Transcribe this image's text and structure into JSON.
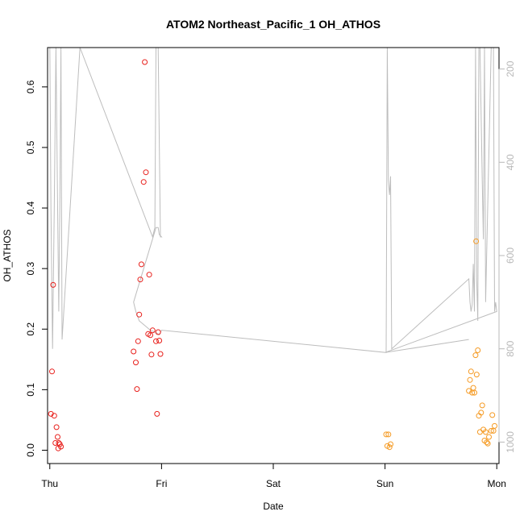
{
  "chart_data": {
    "type": "scatter",
    "title": "ATOM2 Northeast_Pacific_1 OH_ATHOS",
    "xlabel": "Date",
    "ylabel": "OH_ATHOS",
    "x_unit": "days",
    "xlim": [
      -0.02,
      4.02
    ],
    "ylim": [
      -0.022,
      0.665
    ],
    "x_ticks": [
      {
        "value": 0,
        "label": "Thu"
      },
      {
        "value": 1,
        "label": "Fri"
      },
      {
        "value": 2,
        "label": "Sat"
      },
      {
        "value": 3,
        "label": "Sun"
      },
      {
        "value": 4,
        "label": "Mon"
      }
    ],
    "y_ticks": [
      0.0,
      0.1,
      0.2,
      0.3,
      0.4,
      0.5,
      0.6
    ],
    "y_tick_labels": [
      "0.0",
      "0.1",
      "0.2",
      "0.3",
      "0.4",
      "0.5",
      "0.6"
    ],
    "y2_lim": [
      154,
      1046
    ],
    "y2_reversed": true,
    "y2_ticks": [
      200,
      400,
      600,
      800,
      1000
    ],
    "y2_tick_labels": [
      "200",
      "400",
      "600",
      "800",
      "1000"
    ],
    "grid": false,
    "series": [
      {
        "color": "#e8201c",
        "marker": "open-circle",
        "points": [
          [
            0.01,
            0.06
          ],
          [
            0.02,
            0.13
          ],
          [
            0.03,
            0.273
          ],
          [
            0.04,
            0.057
          ],
          [
            0.05,
            0.012
          ],
          [
            0.06,
            0.038
          ],
          [
            0.07,
            0.022
          ],
          [
            0.075,
            0.003
          ],
          [
            0.08,
            0.012
          ],
          [
            0.09,
            0.01
          ],
          [
            0.1,
            0.006
          ],
          [
            0.75,
            0.163
          ],
          [
            0.77,
            0.145
          ],
          [
            0.78,
            0.101
          ],
          [
            0.79,
            0.18
          ],
          [
            0.8,
            0.224
          ],
          [
            0.81,
            0.282
          ],
          [
            0.82,
            0.307
          ],
          [
            0.84,
            0.443
          ],
          [
            0.85,
            0.641
          ],
          [
            0.86,
            0.459
          ],
          [
            0.88,
            0.192
          ],
          [
            0.89,
            0.29
          ],
          [
            0.9,
            0.19
          ],
          [
            0.91,
            0.158
          ],
          [
            0.92,
            0.198
          ],
          [
            0.95,
            0.18
          ],
          [
            0.96,
            0.06
          ],
          [
            0.97,
            0.195
          ],
          [
            0.98,
            0.181
          ],
          [
            0.99,
            0.159
          ]
        ]
      },
      {
        "color": "#f59a23",
        "marker": "open-circle",
        "points": [
          [
            3.01,
            0.026
          ],
          [
            3.02,
            0.007
          ],
          [
            3.03,
            0.026
          ],
          [
            3.04,
            0.005
          ],
          [
            3.05,
            0.01
          ],
          [
            3.75,
            0.098
          ],
          [
            3.76,
            0.116
          ],
          [
            3.77,
            0.13
          ],
          [
            3.78,
            0.095
          ],
          [
            3.79,
            0.103
          ],
          [
            3.8,
            0.095
          ],
          [
            3.81,
            0.157
          ],
          [
            3.815,
            0.345
          ],
          [
            3.82,
            0.125
          ],
          [
            3.83,
            0.165
          ],
          [
            3.84,
            0.057
          ],
          [
            3.85,
            0.03
          ],
          [
            3.86,
            0.062
          ],
          [
            3.87,
            0.074
          ],
          [
            3.88,
            0.034
          ],
          [
            3.89,
            0.016
          ],
          [
            3.9,
            0.03
          ],
          [
            3.91,
            0.013
          ],
          [
            3.92,
            0.011
          ],
          [
            3.93,
            0.022
          ],
          [
            3.95,
            0.032
          ],
          [
            3.96,
            0.058
          ],
          [
            3.97,
            0.032
          ],
          [
            3.98,
            0.04
          ]
        ]
      },
      {
        "axis": "right",
        "type": "line",
        "color": "#bdbdbd",
        "points": [
          [
            0.0,
            154
          ],
          [
            0.01,
            500
          ],
          [
            0.025,
            800
          ],
          [
            0.04,
            500
          ],
          [
            0.055,
            154
          ],
          [
            0.07,
            500
          ],
          [
            0.08,
            720
          ],
          [
            0.09,
            500
          ],
          [
            0.1,
            154
          ],
          [
            0.11,
            780
          ],
          [
            0.27,
            154
          ],
          [
            0.92,
            560
          ],
          [
            0.94,
            540
          ],
          [
            0.95,
            154
          ],
          [
            0.97,
            154
          ],
          [
            0.99,
            560
          ],
          [
            1.0,
            560
          ],
          [
            0.98,
            555
          ],
          [
            0.97,
            540
          ],
          [
            0.95,
            540
          ],
          [
            0.75,
            700
          ],
          [
            0.76,
            710
          ],
          [
            0.77,
            720
          ],
          [
            0.8,
            740
          ],
          [
            0.85,
            750
          ],
          [
            0.9,
            760
          ],
          [
            0.95,
            765
          ],
          [
            0.98,
            770
          ],
          [
            1.0,
            760
          ],
          [
            3.01,
            808
          ],
          [
            3.02,
            154
          ],
          [
            3.03,
            440
          ],
          [
            3.04,
            470
          ],
          [
            3.05,
            430
          ],
          [
            3.06,
            800
          ],
          [
            3.75,
            650
          ],
          [
            3.76,
            700
          ],
          [
            3.77,
            720
          ],
          [
            3.78,
            705
          ],
          [
            3.79,
            618
          ],
          [
            3.8,
            720
          ],
          [
            3.81,
            154
          ],
          [
            3.82,
            650
          ],
          [
            3.83,
            740
          ],
          [
            3.84,
            154
          ],
          [
            3.85,
            154
          ],
          [
            3.87,
            440
          ],
          [
            3.88,
            565
          ],
          [
            3.89,
            154
          ],
          [
            3.9,
            700
          ],
          [
            3.95,
            154
          ],
          [
            3.97,
            154
          ],
          [
            3.98,
            720
          ],
          [
            3.99,
            700
          ],
          [
            4.0,
            720
          ],
          [
            3.0,
            808
          ],
          [
            3.75,
            780
          ]
        ]
      }
    ]
  }
}
